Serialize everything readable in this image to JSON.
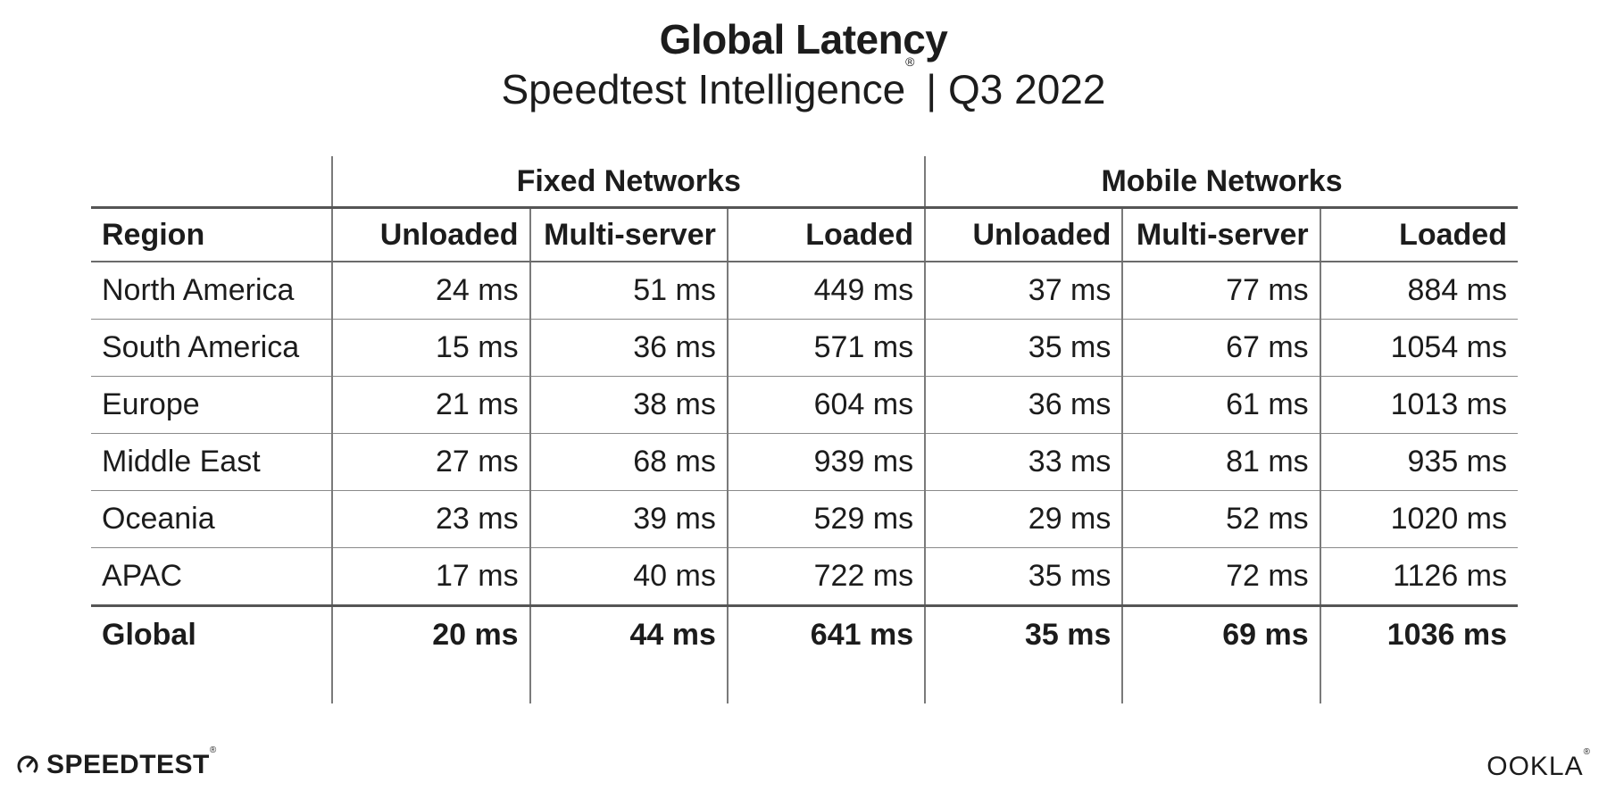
{
  "title": "Global Latency",
  "subtitle": "Speedtest Intelligence",
  "subtitle_mark": "®",
  "subtitle_period": " | Q3 2022",
  "chart_data": {
    "type": "table",
    "group_headers": [
      "Fixed Networks",
      "Mobile Networks"
    ],
    "columns": [
      "Region",
      "Unloaded",
      "Multi-server",
      "Loaded",
      "Unloaded",
      "Multi-server",
      "Loaded"
    ],
    "rows": [
      {
        "region": "North America",
        "values": [
          "24 ms",
          "51 ms",
          "449 ms",
          "37 ms",
          "77 ms",
          "884 ms"
        ]
      },
      {
        "region": "South America",
        "values": [
          "15 ms",
          "36 ms",
          "571 ms",
          "35 ms",
          "67 ms",
          "1054 ms"
        ]
      },
      {
        "region": "Europe",
        "values": [
          "21 ms",
          "38 ms",
          "604 ms",
          "36 ms",
          "61 ms",
          "1013 ms"
        ]
      },
      {
        "region": "Middle East",
        "values": [
          "27 ms",
          "68 ms",
          "939 ms",
          "33 ms",
          "81 ms",
          "935 ms"
        ]
      },
      {
        "region": "Oceania",
        "values": [
          "23 ms",
          "39 ms",
          "529 ms",
          "29 ms",
          "52 ms",
          "1020 ms"
        ]
      },
      {
        "region": "APAC",
        "values": [
          "17 ms",
          "40 ms",
          "722 ms",
          "35 ms",
          "72 ms",
          "1126 ms"
        ]
      }
    ],
    "total": {
      "region": "Global",
      "values": [
        "20 ms",
        "44 ms",
        "641 ms",
        "35 ms",
        "69 ms",
        "1036 ms"
      ]
    }
  },
  "footer": {
    "brand_left": "SPEEDTEST",
    "brand_left_mark": "®",
    "brand_left_icon": "speedometer-icon",
    "brand_right": "OOKLA",
    "brand_right_mark": "®"
  }
}
